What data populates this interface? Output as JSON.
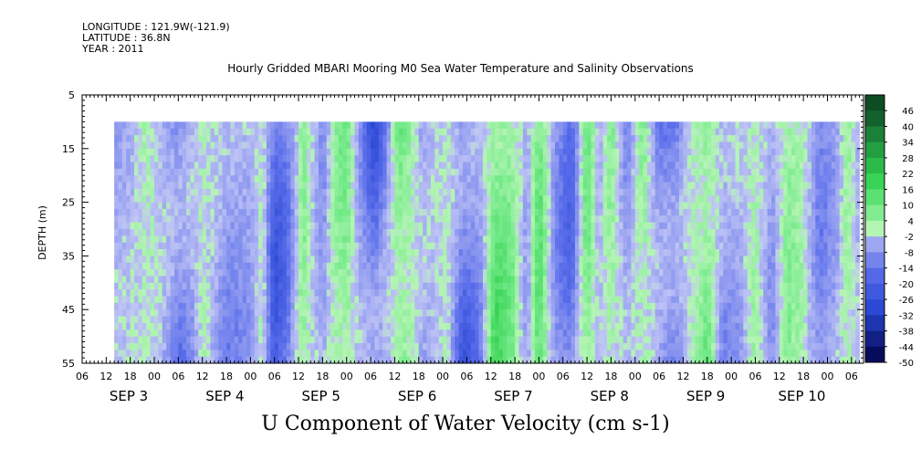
{
  "meta": {
    "longitude": "LONGITUDE : 121.9W(-121.9)",
    "latitude": "LATITUDE : 36.8N",
    "year": "YEAR : 2011"
  },
  "chart_data": {
    "type": "heatmap",
    "title": "Hourly Gridded MBARI Mooring M0 Sea Water Temperature and Salinity Observations",
    "xlabel": "U Component of Water Velocity (cm s-1)",
    "ylabel": "DEPTH (m)",
    "x_hour_ticks": [
      "06",
      "12",
      "18",
      "00",
      "06",
      "12",
      "18",
      "00",
      "06",
      "12",
      "18",
      "00",
      "06",
      "12",
      "18",
      "00",
      "06",
      "12",
      "18",
      "00",
      "06",
      "12",
      "18",
      "00",
      "06",
      "12",
      "18",
      "00",
      "06",
      "12",
      "18",
      "00",
      "06"
    ],
    "x_day_labels": [
      {
        "label": "SEP  3",
        "day": 3
      },
      {
        "label": "SEP  4",
        "day": 4
      },
      {
        "label": "SEP  5",
        "day": 5
      },
      {
        "label": "SEP  6",
        "day": 6
      },
      {
        "label": "SEP  7",
        "day": 7
      },
      {
        "label": "SEP  8",
        "day": 8
      },
      {
        "label": "SEP  9",
        "day": 9
      },
      {
        "label": "SEP 10",
        "day": 10
      }
    ],
    "xlim": [
      "2011-09-02T06:00",
      "2011-09-10T09:00"
    ],
    "data_xlim": [
      "2011-09-02T14:00",
      "2011-09-10T08:00"
    ],
    "y_ticks": [
      5,
      15,
      25,
      35,
      45,
      55
    ],
    "ylim": [
      5,
      55
    ],
    "y_inverted": true,
    "data_depth_range": [
      10,
      55
    ],
    "colorbar_levels": [
      48,
      46,
      40,
      34,
      28,
      22,
      16,
      10,
      4,
      -2,
      -8,
      -14,
      -20,
      -26,
      -32,
      -38,
      -44,
      -50
    ],
    "colorbar_labels": [
      "46",
      "40",
      "34",
      "28",
      "22",
      "16",
      "10",
      "4",
      "-2",
      "-8",
      "-14",
      "-20",
      "-26",
      "-32",
      "-38",
      "-44",
      "-50"
    ],
    "colorbar_range": [
      -50,
      50
    ],
    "colors": {
      "strong_negative": "#1a2a9a",
      "negative": "#4f66e6",
      "weak_negative": "#a9b0ec",
      "weak_positive": "#a6f0a6",
      "positive": "#3ed45a",
      "strong_positive": "#1f6a32"
    },
    "column_values": [
      {
        "time": "2011-09-02T14:00",
        "value": -6
      },
      {
        "time": "2011-09-02T18:00",
        "value": -4
      },
      {
        "time": "2011-09-02T22:00",
        "value": 3
      },
      {
        "time": "2011-09-03T00:00",
        "value": 1
      },
      {
        "time": "2011-09-03T03:00",
        "value": -8
      },
      {
        "time": "2011-09-03T06:00",
        "value": -18
      },
      {
        "time": "2011-09-03T09:00",
        "value": -10
      },
      {
        "time": "2011-09-03T12:00",
        "value": 2
      },
      {
        "time": "2011-09-03T15:00",
        "value": -4
      },
      {
        "time": "2011-09-03T18:00",
        "value": -10
      },
      {
        "time": "2011-09-04T00:00",
        "value": -6
      },
      {
        "time": "2011-09-04T03:00",
        "value": 2
      },
      {
        "time": "2011-09-04T06:00",
        "value": -20
      },
      {
        "time": "2011-09-04T09:00",
        "value": -14
      },
      {
        "time": "2011-09-04T13:00",
        "value": 6
      },
      {
        "time": "2011-09-04T18:00",
        "value": -8
      },
      {
        "time": "2011-09-04T21:00",
        "value": 4
      },
      {
        "time": "2011-09-05T00:00",
        "value": 8
      },
      {
        "time": "2011-09-05T03:00",
        "value": -6
      },
      {
        "time": "2011-09-05T07:00",
        "value": -24
      },
      {
        "time": "2011-09-05T10:00",
        "value": -10
      },
      {
        "time": "2011-09-05T13:00",
        "value": 12
      },
      {
        "time": "2011-09-05T16:00",
        "value": 6
      },
      {
        "time": "2011-09-05T19:00",
        "value": -8
      },
      {
        "time": "2011-09-05T22:00",
        "value": -4
      },
      {
        "time": "2011-09-06T01:00",
        "value": 2
      },
      {
        "time": "2011-09-06T05:00",
        "value": -22
      },
      {
        "time": "2011-09-06T09:00",
        "value": -12
      },
      {
        "time": "2011-09-06T13:00",
        "value": 14
      },
      {
        "time": "2011-09-06T17:00",
        "value": 8
      },
      {
        "time": "2011-09-06T21:00",
        "value": -6
      },
      {
        "time": "2011-09-07T00:00",
        "value": 12
      },
      {
        "time": "2011-09-07T04:00",
        "value": -8
      },
      {
        "time": "2011-09-07T08:00",
        "value": -16
      },
      {
        "time": "2011-09-07T12:00",
        "value": 10
      },
      {
        "time": "2011-09-07T15:00",
        "value": -4
      },
      {
        "time": "2011-09-07T18:00",
        "value": 6
      },
      {
        "time": "2011-09-07T22:00",
        "value": -10
      },
      {
        "time": "2011-09-08T02:00",
        "value": 8
      },
      {
        "time": "2011-09-08T06:00",
        "value": -14
      },
      {
        "time": "2011-09-08T10:00",
        "value": -18
      },
      {
        "time": "2011-09-08T14:00",
        "value": 2
      },
      {
        "time": "2011-09-08T18:00",
        "value": 12
      },
      {
        "time": "2011-09-08T22:00",
        "value": -10
      },
      {
        "time": "2011-09-09T02:00",
        "value": -6
      },
      {
        "time": "2011-09-09T06:00",
        "value": 4
      },
      {
        "time": "2011-09-09T10:00",
        "value": -8
      },
      {
        "time": "2011-09-09T14:00",
        "value": 6
      },
      {
        "time": "2011-09-09T18:00",
        "value": 2
      },
      {
        "time": "2011-09-09T22:00",
        "value": -10
      },
      {
        "time": "2011-09-10T02:00",
        "value": -6
      },
      {
        "time": "2011-09-10T05:00",
        "value": 4
      },
      {
        "time": "2011-09-10T08:00",
        "value": -4
      }
    ]
  }
}
